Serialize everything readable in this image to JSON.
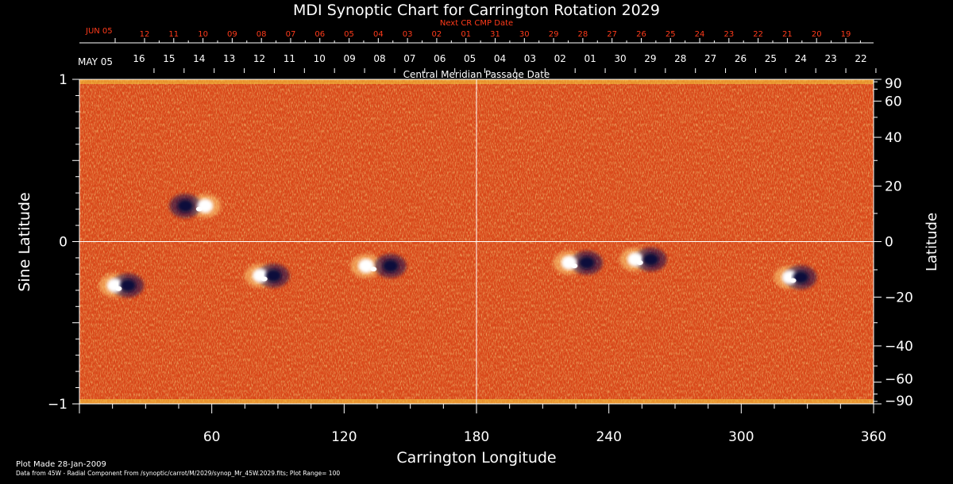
{
  "chart_data": {
    "type": "heatmap",
    "title": "MDI Synoptic Chart for Carrington Rotation 2029",
    "xlabel": "Carrington Longitude",
    "ylabel": "Sine Latitude",
    "ylabel_right": "Latitude",
    "xlim": [
      0,
      360
    ],
    "ylim": [
      -1,
      1
    ],
    "x_ticks": [
      "60",
      "120",
      "180",
      "240",
      "300",
      "360"
    ],
    "x_tick_values": [
      60,
      120,
      180,
      240,
      300,
      360
    ],
    "y_ticks_left": [
      "1",
      "0",
      "−1"
    ],
    "y_tick_values_left": [
      1,
      0,
      -1
    ],
    "y_ticks_right": [
      "90",
      "60",
      "40",
      "20",
      "0",
      "−20",
      "−40",
      "−60",
      "−90"
    ],
    "y_tick_values_right": [
      90,
      60,
      40,
      20,
      0,
      -20,
      -40,
      -60,
      -90
    ],
    "grid_lines": {
      "longitude": 180,
      "sine_latitude": 0
    },
    "next_cr_cmp": {
      "label": "Next CR CMP Date",
      "month_label": "JUN 05",
      "dates": [
        "12",
        "11",
        "10",
        "09",
        "08",
        "07",
        "06",
        "05",
        "04",
        "03",
        "02",
        "01",
        "31",
        "30",
        "29",
        "28",
        "27",
        "26",
        "25",
        "24",
        "23",
        "22",
        "21",
        "20",
        "19"
      ],
      "color": "#ff3a1a"
    },
    "cmp": {
      "label": "Central Meridian Passage Date",
      "month_label": "MAY 05",
      "dates": [
        "16",
        "15",
        "14",
        "13",
        "12",
        "11",
        "10",
        "09",
        "08",
        "07",
        "06",
        "05",
        "04",
        "03",
        "02",
        "01",
        "30",
        "29",
        "28",
        "27",
        "26",
        "25",
        "24",
        "23",
        "22"
      ]
    },
    "active_regions": [
      {
        "lon": 53,
        "sinlat": 0.22,
        "pos_lon": 57,
        "neg_lon": 48
      },
      {
        "lon": 19,
        "sinlat": -0.27,
        "pos_lon": 16,
        "neg_lon": 22
      },
      {
        "lon": 85,
        "sinlat": -0.21,
        "pos_lon": 82,
        "neg_lon": 88
      },
      {
        "lon": 136,
        "sinlat": -0.15,
        "pos_lon": 130,
        "neg_lon": 141
      },
      {
        "lon": 228,
        "sinlat": -0.13,
        "pos_lon": 222,
        "neg_lon": 230
      },
      {
        "lon": 256,
        "sinlat": -0.11,
        "pos_lon": 252,
        "neg_lon": 259
      },
      {
        "lon": 325,
        "sinlat": -0.22,
        "pos_lon": 322,
        "neg_lon": 327
      }
    ],
    "colors": {
      "background": "#e0501c",
      "positive": "#ffffff",
      "negative": "#0b0b3a",
      "grid": "#ffffff"
    }
  },
  "footer": {
    "plot_made": "Plot Made 28-Jan-2009",
    "source": "Data from 45W - Radial Component From /synoptic/carrot/M/2029/synop_Mr_45W.2029.fits; Plot Range=  100"
  }
}
